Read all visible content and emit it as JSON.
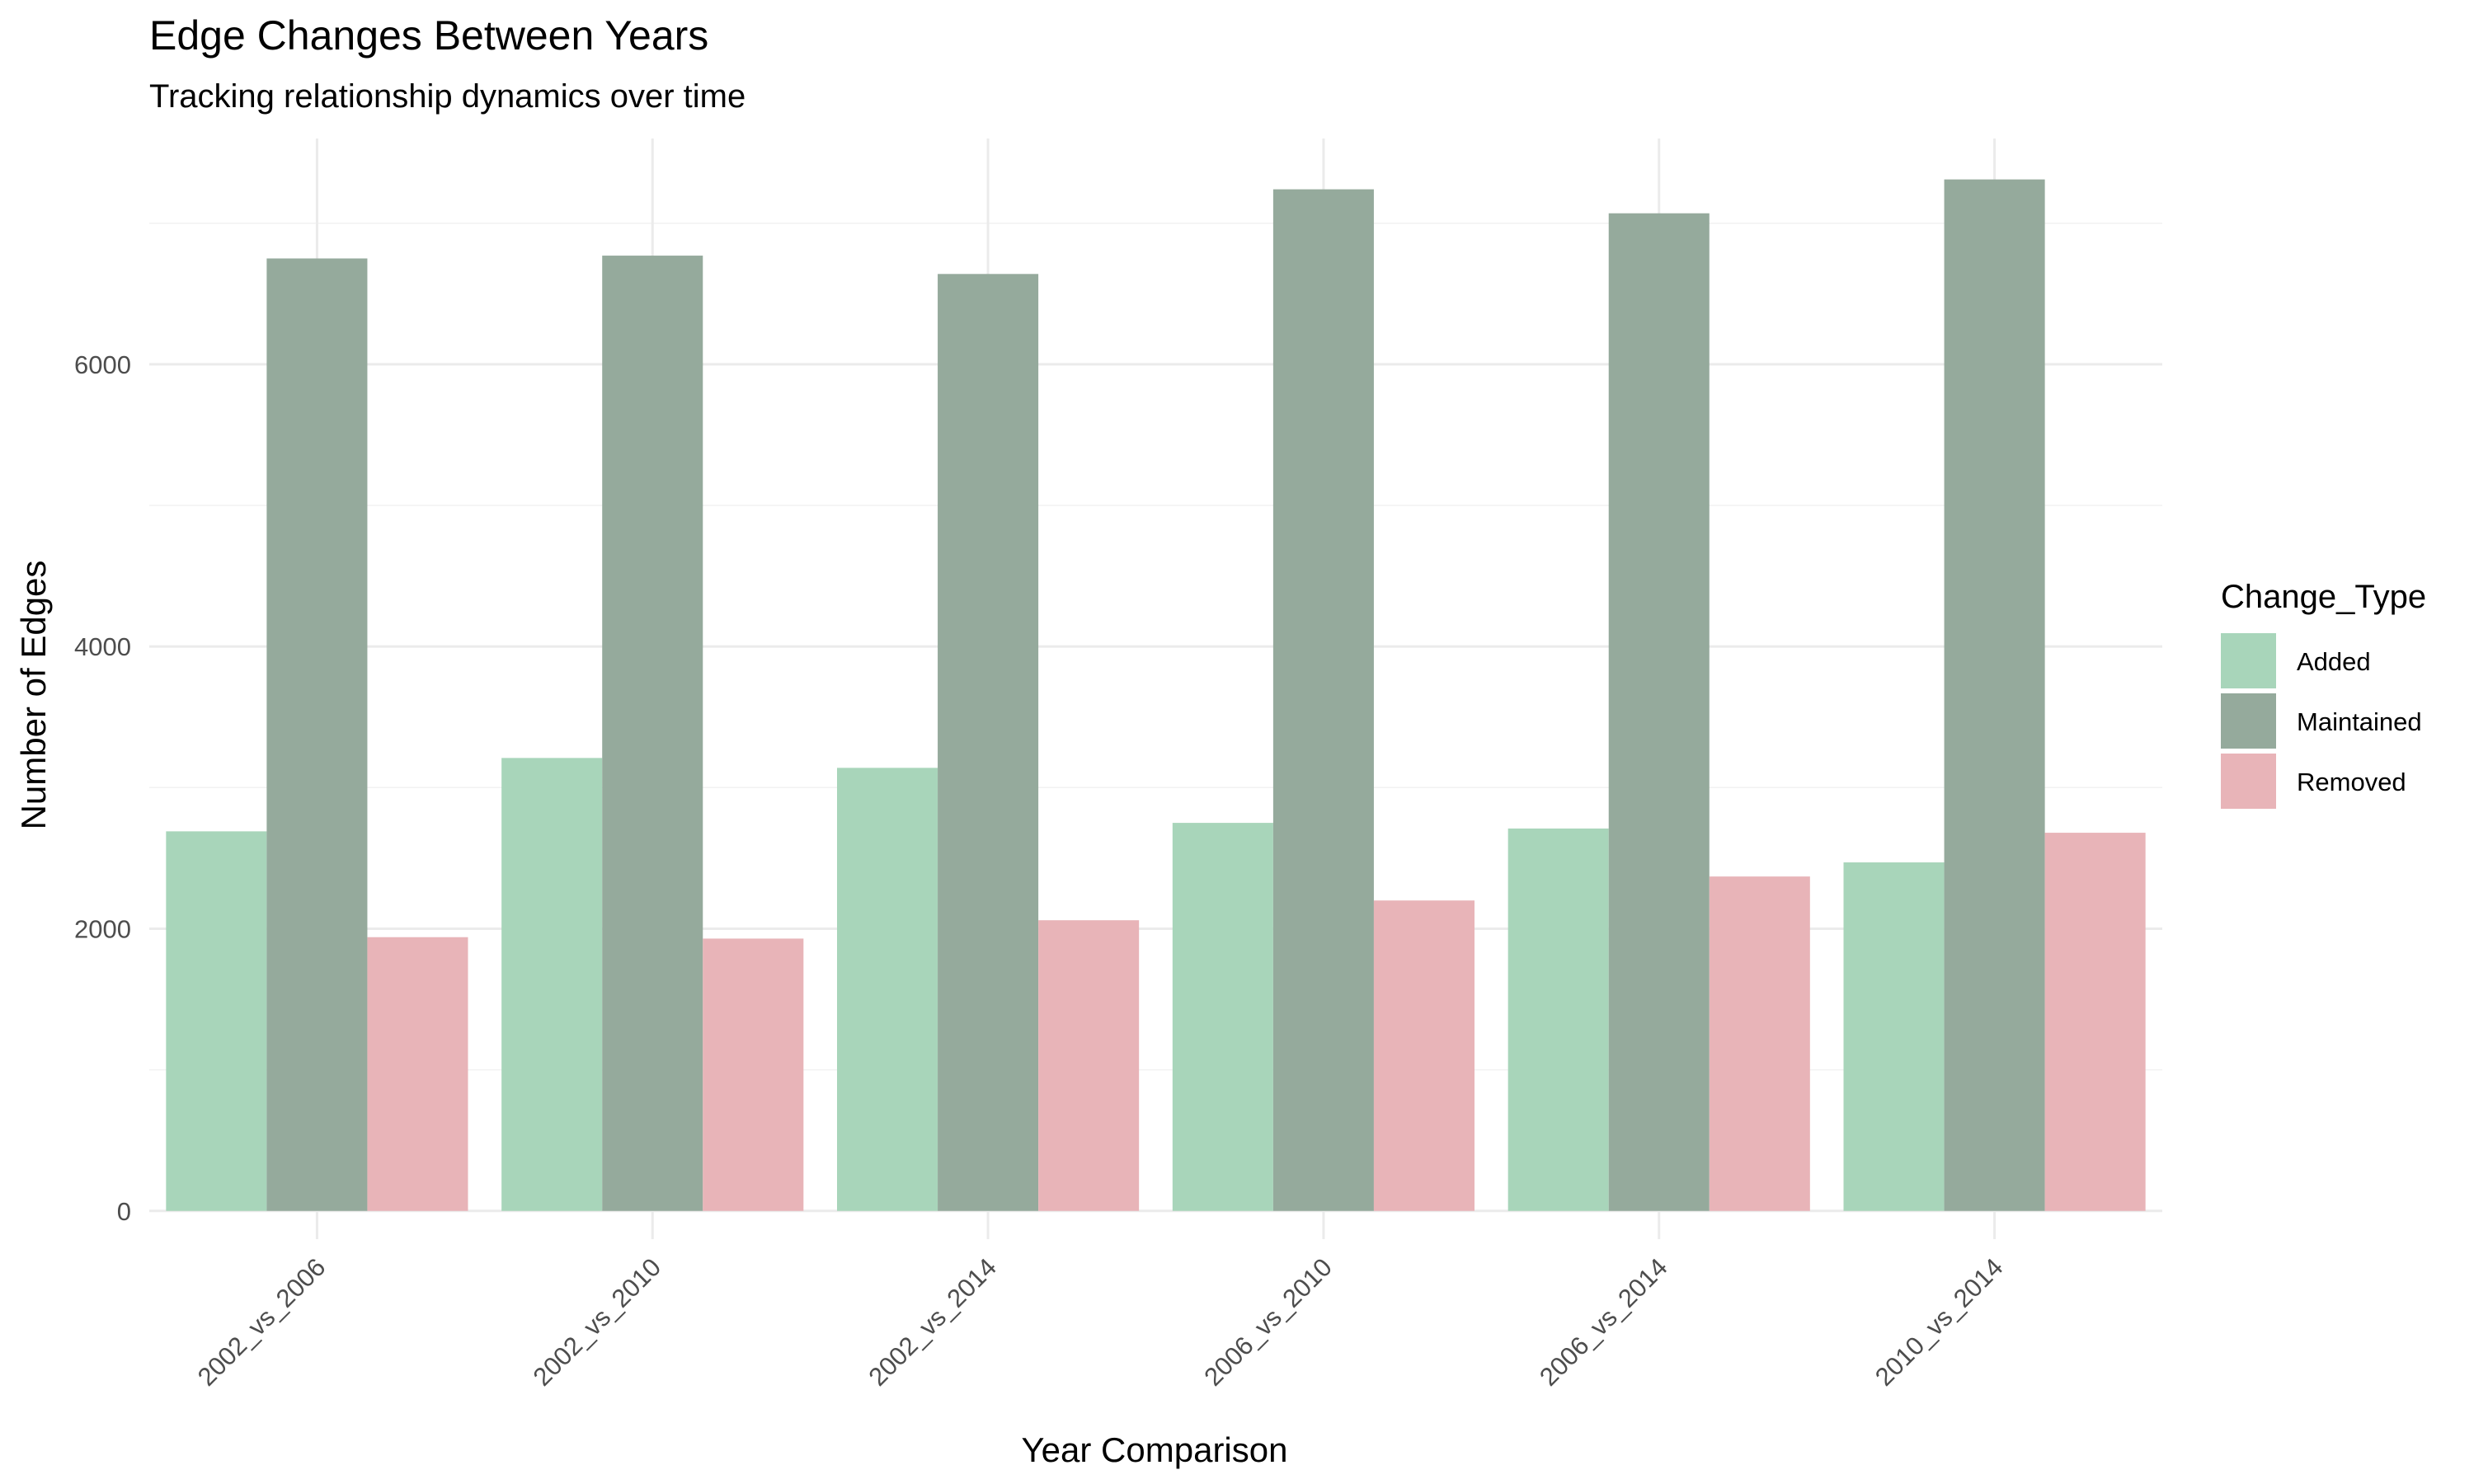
{
  "chart_data": {
    "type": "bar",
    "title": "Edge Changes Between Years",
    "subtitle": "Tracking relationship dynamics over time",
    "xlabel": "Year Comparison",
    "ylabel": "Number of Edges",
    "categories": [
      "2002_vs_2006",
      "2002_vs_2010",
      "2002_vs_2014",
      "2006_vs_2010",
      "2006_vs_2014",
      "2010_vs_2014"
    ],
    "series": [
      {
        "name": "Added",
        "values": [
          2690,
          3210,
          3140,
          2750,
          2710,
          2470
        ]
      },
      {
        "name": "Maintained",
        "values": [
          6750,
          6770,
          6640,
          7240,
          7070,
          7310
        ]
      },
      {
        "name": "Removed",
        "values": [
          1940,
          1930,
          2060,
          2200,
          2370,
          2680
        ]
      }
    ],
    "ylim": [
      -200,
      7600
    ],
    "yticks": [
      0,
      2000,
      4000,
      6000
    ],
    "ytick_labels": [
      "0",
      "2000",
      "4000",
      "6000"
    ],
    "grid": true,
    "legend": {
      "title": "Change_Type",
      "placement": "right"
    },
    "colors": {
      "Added": "#a8d5ba",
      "Maintained": "#95aa9c",
      "Removed": "#e8b4b8"
    }
  }
}
